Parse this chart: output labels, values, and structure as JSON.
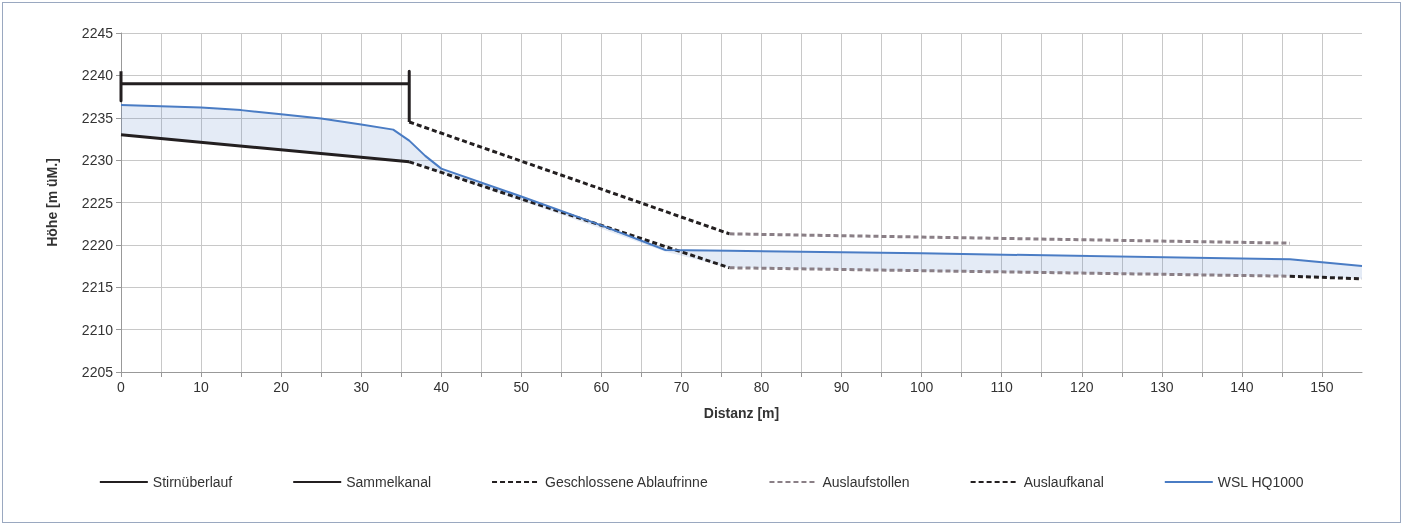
{
  "chart_data": {
    "type": "line",
    "xlabel": "Distanz [m]",
    "ylabel": "Höhe [m üM.]",
    "xlim": [
      0,
      155
    ],
    "xticks": [
      0,
      {
        "value": 5,
        "label": null
      },
      10,
      {
        "value": 15,
        "label": null
      },
      20,
      {
        "value": 25,
        "label": null
      },
      30,
      {
        "value": 35,
        "label": null
      },
      40,
      {
        "value": 45,
        "label": null
      },
      50,
      {
        "value": 55,
        "label": null
      },
      60,
      {
        "value": 65,
        "label": null
      },
      70,
      {
        "value": 75,
        "label": null
      },
      80,
      {
        "value": 85,
        "label": null
      },
      90,
      {
        "value": 95,
        "label": null
      },
      100,
      {
        "value": 105,
        "label": null
      },
      110,
      {
        "value": 115,
        "label": null
      },
      120,
      {
        "value": 125,
        "label": null
      },
      130,
      {
        "value": 135,
        "label": null
      },
      140,
      {
        "value": 145,
        "label": null
      },
      150
    ],
    "ylim": [
      2205,
      2245
    ],
    "yticks": [
      2205,
      2210,
      2215,
      2220,
      2225,
      2230,
      2235,
      2240,
      2245
    ],
    "grid": true,
    "legend": "bottom",
    "marker": "none",
    "series": [
      {
        "name": "Stirnüberlauf",
        "color": "#231f20",
        "line_style": "solid",
        "x": [
          0,
          0,
          0,
          36,
          36,
          36
        ],
        "values": [
          2240.5,
          2237,
          2239,
          2239,
          2240.5,
          2234.5
        ]
      },
      {
        "name": "Sammelkanal",
        "color": "#231f20",
        "line_style": "solid",
        "x": [
          0,
          36
        ],
        "values": [
          2233,
          2229.8
        ]
      },
      {
        "name": "Geschlossene Ablaufrinne",
        "color": "#231f20",
        "line_style": "dashed",
        "x": [
          36,
          76
        ],
        "values": [
          2234.5,
          2221.3
        ]
      },
      {
        "color": "#231f20",
        "line_style": "dashed",
        "x": [
          36,
          76
        ],
        "values": [
          2229.8,
          2217.3
        ]
      },
      {
        "name": "Auslaufstollen",
        "color": "#8a7f86",
        "line_style": "dashed",
        "x": [
          76,
          146
        ],
        "values": [
          2221.3,
          2220.2
        ]
      },
      {
        "color": "#8a7f86",
        "line_style": "dashed",
        "x": [
          76,
          146
        ],
        "values": [
          2217.3,
          2216.3
        ]
      },
      {
        "name": "Auslaufkanal",
        "color": "#231f20",
        "line_style": "dashed",
        "x": [
          146,
          155
        ],
        "values": [
          2216.3,
          2216
        ]
      },
      {
        "name": "WSL HQ1000",
        "color": "#4a7cc4",
        "line_style": "solid",
        "x": [
          0,
          10,
          15,
          20,
          25,
          30,
          34,
          36,
          38,
          40,
          50,
          60,
          68,
          76,
          100,
          146,
          155
        ],
        "values": [
          2236.5,
          2236.2,
          2235.9,
          2235.4,
          2234.9,
          2234.2,
          2233.6,
          2232.3,
          2230.5,
          2229,
          2225.7,
          2222.3,
          2219.4,
          2219.3,
          2219,
          2218.3,
          2217.5
        ],
        "lower": [
          2233,
          2232.1,
          2231.7,
          2231.2,
          2230.8,
          2230.3,
          2230,
          2229.8,
          2229.2,
          2228.5,
          2225.2,
          2221.9,
          2219.2,
          2217.3,
          2216.9,
          2216.3,
          2216
        ],
        "upper": [
          2236.5,
          2236.2,
          2235.9,
          2235.4,
          2234.9,
          2234.2,
          2233.6,
          2232.3,
          2230.5,
          2229,
          2225.7,
          2222.3,
          2219.4,
          2219.3,
          2219,
          2218.3,
          2217.5
        ]
      }
    ]
  }
}
